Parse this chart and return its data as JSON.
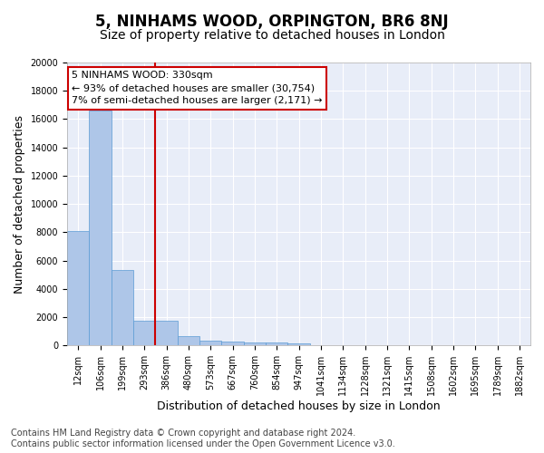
{
  "title": "5, NINHAMS WOOD, ORPINGTON, BR6 8NJ",
  "subtitle": "Size of property relative to detached houses in London",
  "xlabel": "Distribution of detached houses by size in London",
  "ylabel": "Number of detached properties",
  "bar_values": [
    8100,
    16600,
    5300,
    1750,
    1750,
    650,
    330,
    250,
    200,
    180,
    130,
    0,
    0,
    0,
    0,
    0,
    0,
    0,
    0,
    0,
    0
  ],
  "bar_labels": [
    "12sqm",
    "106sqm",
    "199sqm",
    "293sqm",
    "386sqm",
    "480sqm",
    "573sqm",
    "667sqm",
    "760sqm",
    "854sqm",
    "947sqm",
    "1041sqm",
    "1134sqm",
    "1228sqm",
    "1321sqm",
    "1415sqm",
    "1508sqm",
    "1602sqm",
    "1695sqm",
    "1789sqm",
    "1882sqm"
  ],
  "bar_color": "#aec6e8",
  "bar_edge_color": "#5b9bd5",
  "vline_color": "#cc0000",
  "annotation_text": "5 NINHAMS WOOD: 330sqm\n← 93% of detached houses are smaller (30,754)\n7% of semi-detached houses are larger (2,171) →",
  "annotation_box_color": "#ffffff",
  "annotation_box_edge_color": "#cc0000",
  "ylim": [
    0,
    20000
  ],
  "yticks": [
    0,
    2000,
    4000,
    6000,
    8000,
    10000,
    12000,
    14000,
    16000,
    18000,
    20000
  ],
  "background_color": "#e8edf8",
  "grid_color": "#ffffff",
  "footnote": "Contains HM Land Registry data © Crown copyright and database right 2024.\nContains public sector information licensed under the Open Government Licence v3.0.",
  "title_fontsize": 12,
  "subtitle_fontsize": 10,
  "axis_label_fontsize": 9,
  "tick_fontsize": 7,
  "annotation_fontsize": 8,
  "footnote_fontsize": 7
}
